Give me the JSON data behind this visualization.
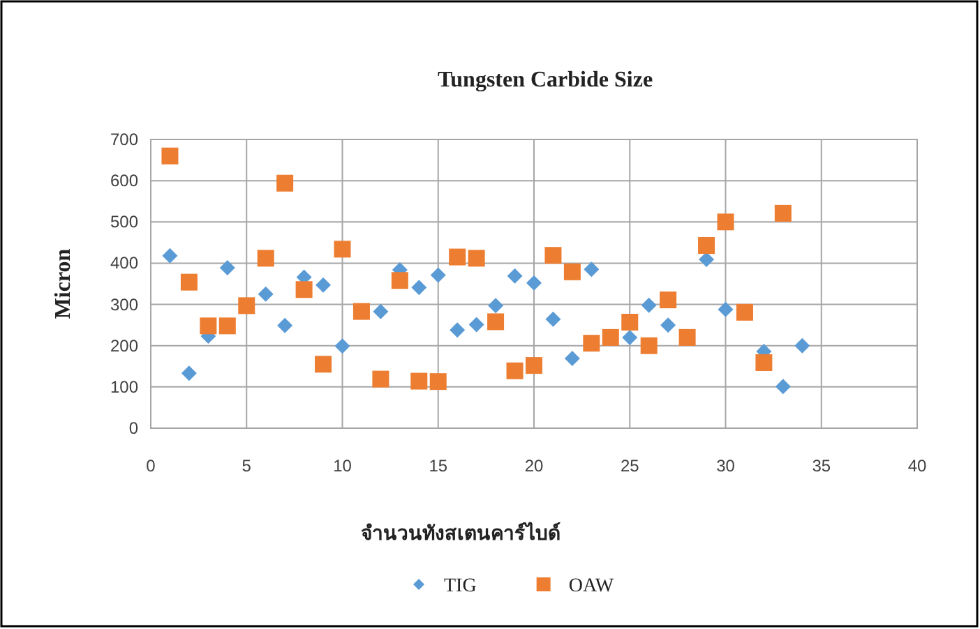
{
  "chart_data": {
    "type": "scatter",
    "title": "Tungsten Carbide Size",
    "xlabel": "จำนวนทังสเตนคาร์ไบด์",
    "ylabel": "Micron",
    "xlim": [
      0,
      40
    ],
    "xticks": [
      0,
      5,
      10,
      15,
      20,
      25,
      30,
      35,
      40
    ],
    "ylim": [
      0,
      700
    ],
    "yticks": [
      0,
      100,
      200,
      300,
      400,
      500,
      600,
      700
    ],
    "grid": true,
    "legend": "bottom",
    "series": [
      {
        "name": "TIG",
        "color": "#5b9bd5",
        "marker": "diamond",
        "x": [
          1,
          2,
          3,
          4,
          6,
          7,
          8,
          9,
          10,
          12,
          13,
          14,
          15,
          16,
          17,
          18,
          19,
          20,
          21,
          22,
          23,
          25,
          26,
          27,
          29,
          30,
          32,
          33,
          34
        ],
        "values": [
          418,
          133,
          223,
          389,
          325,
          249,
          366,
          347,
          199,
          283,
          384,
          341,
          371,
          238,
          251,
          297,
          369,
          352,
          264,
          169,
          385,
          220,
          298,
          250,
          409,
          288,
          186,
          101,
          200
        ]
      },
      {
        "name": "OAW",
        "color": "#ed7d31",
        "marker": "square",
        "x": [
          1,
          2,
          3,
          4,
          5,
          6,
          7,
          8,
          9,
          10,
          11,
          12,
          13,
          14,
          15,
          16,
          17,
          18,
          19,
          20,
          21,
          22,
          23,
          24,
          25,
          26,
          27,
          28,
          29,
          30,
          31,
          32,
          33
        ],
        "values": [
          660,
          354,
          248,
          248,
          297,
          412,
          594,
          336,
          155,
          434,
          283,
          119,
          358,
          114,
          113,
          415,
          412,
          258,
          139,
          152,
          419,
          379,
          206,
          220,
          257,
          200,
          311,
          220,
          443,
          500,
          281,
          159,
          521
        ]
      }
    ]
  }
}
